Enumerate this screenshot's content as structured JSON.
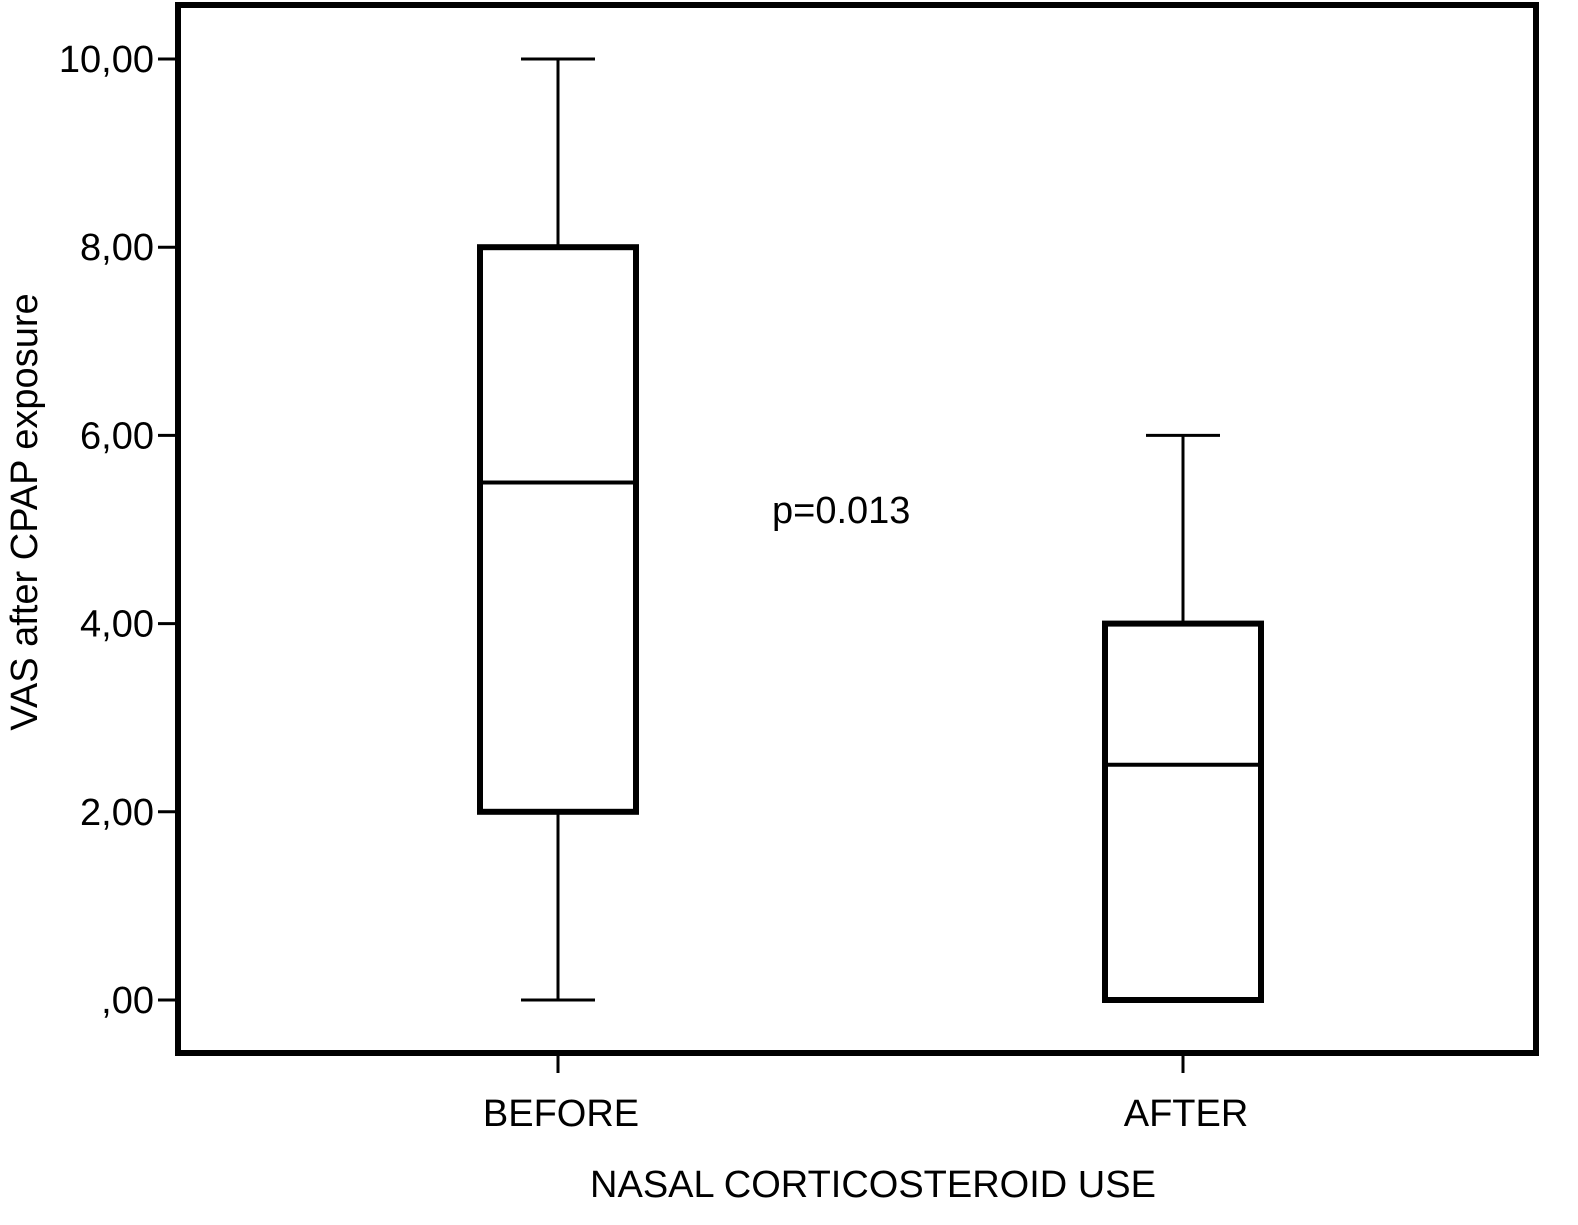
{
  "chart_data": {
    "type": "boxplot",
    "title": "",
    "xlabel": "NASAL CORTICOSTEROID USE",
    "ylabel": "VAS after CPAP exposure",
    "ylim": [
      0,
      10
    ],
    "yticks": [
      0,
      2,
      4,
      6,
      8,
      10
    ],
    "ytick_labels": [
      ",00",
      "2,00",
      "4,00",
      "6,00",
      "8,00",
      "10,00"
    ],
    "categories": [
      "BEFORE",
      "AFTER"
    ],
    "boxes": [
      {
        "category": "BEFORE",
        "min": 0,
        "q1": 2,
        "median": 5.5,
        "q3": 8,
        "max": 10
      },
      {
        "category": "AFTER",
        "min": 0,
        "q1": 0,
        "median": 2.5,
        "q3": 4,
        "max": 6
      }
    ],
    "annotation": "p=0.013",
    "grid": false,
    "colors": {
      "box_fill": "#ffffff",
      "stroke": "#000000"
    }
  }
}
